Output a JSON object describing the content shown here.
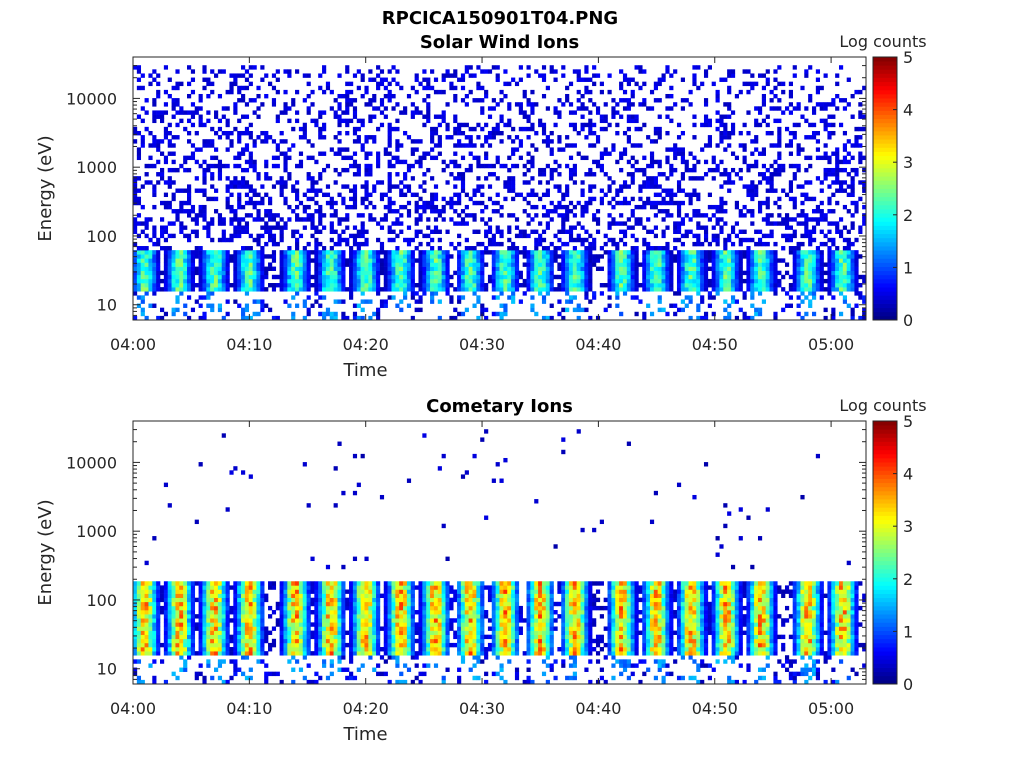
{
  "figure": {
    "filename_title": "RPCICA150901T04.PNG"
  },
  "chart_data": [
    {
      "type": "heatmap",
      "title": "Solar Wind Ions",
      "xlabel": "Time",
      "ylabel": "Energy (eV)",
      "yscale": "log",
      "ylim": [
        6,
        40000
      ],
      "xlim": [
        "04:00",
        "05:03"
      ],
      "xticks": [
        "04:00",
        "04:10",
        "04:20",
        "04:30",
        "04:40",
        "04:50",
        "05:00"
      ],
      "yticks": [
        10,
        100,
        1000,
        10000
      ],
      "ytick_labels": [
        "10",
        "100",
        "1000",
        "10000"
      ],
      "colorbar": {
        "label": "Log counts",
        "range": [
          0,
          5
        ],
        "ticks": [
          "0",
          "1",
          "2",
          "3",
          "4",
          "5"
        ],
        "colormap": "jet"
      },
      "grid": false,
      "peak_times": [
        "04:01",
        "04:04",
        "04:07",
        "04:10",
        "04:14",
        "04:17",
        "04:20",
        "04:23",
        "04:26",
        "04:29",
        "04:32",
        "04:35",
        "04:38",
        "04:42",
        "04:45",
        "04:48",
        "04:51",
        "04:54",
        "04:58",
        "05:01"
      ],
      "band_energy_range_eV": [
        15,
        60
      ],
      "band_peak_log_counts": 2.5,
      "background_log_counts": 0.3,
      "background_energy_range_eV": [
        60,
        30000
      ]
    },
    {
      "type": "heatmap",
      "title": "Cometary Ions",
      "xlabel": "Time",
      "ylabel": "Energy (eV)",
      "yscale": "log",
      "ylim": [
        6,
        40000
      ],
      "xlim": [
        "04:00",
        "05:03"
      ],
      "xticks": [
        "04:00",
        "04:10",
        "04:20",
        "04:30",
        "04:40",
        "04:50",
        "05:00"
      ],
      "yticks": [
        10,
        100,
        1000,
        10000
      ],
      "ytick_labels": [
        "10",
        "100",
        "1000",
        "10000"
      ],
      "colorbar": {
        "label": "Log counts",
        "range": [
          0,
          5
        ],
        "ticks": [
          "0",
          "1",
          "2",
          "3",
          "4",
          "5"
        ],
        "colormap": "jet"
      },
      "grid": false,
      "peak_times": [
        "04:01",
        "04:04",
        "04:07",
        "04:10",
        "04:14",
        "04:17",
        "04:20",
        "04:23",
        "04:26",
        "04:29",
        "04:32",
        "04:35",
        "04:38",
        "04:42",
        "04:45",
        "04:48",
        "04:51",
        "04:54",
        "04:58",
        "05:01"
      ],
      "band_energy_range_eV": [
        15,
        180
      ],
      "band_peak_log_counts": 3.8,
      "background_log_counts": 0.2,
      "background_energy_range_eV": [
        300,
        30000
      ]
    }
  ]
}
